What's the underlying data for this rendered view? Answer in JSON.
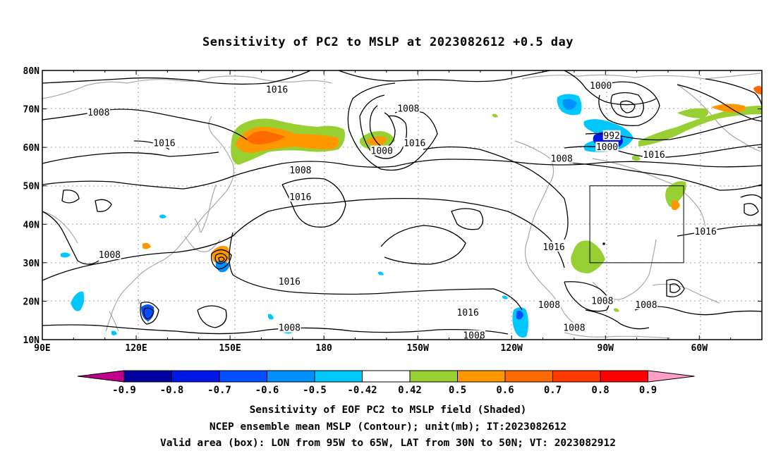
{
  "title": "Sensitivity of PC2 to MSLP at 2023082612 +0.5 day",
  "map": {
    "lat_labels": [
      "80N",
      "70N",
      "60N",
      "50N",
      "40N",
      "30N",
      "20N",
      "10N"
    ],
    "lon_labels": [
      "90E",
      "120E",
      "150E",
      "180",
      "150W",
      "120W",
      "90W",
      "60W"
    ],
    "contour_labels": [
      {
        "text": "1016",
        "lon": 165,
        "lat": 75
      },
      {
        "text": "1008",
        "lon": 108,
        "lat": 69
      },
      {
        "text": "1016",
        "lon": 129,
        "lat": 61
      },
      {
        "text": "1008",
        "lon": 172.5,
        "lat": 54
      },
      {
        "text": "1016",
        "lon": 172.5,
        "lat": 47
      },
      {
        "text": "1008",
        "lon": 207,
        "lat": 70
      },
      {
        "text": "1016",
        "lon": 209,
        "lat": 61
      },
      {
        "text": "1000",
        "lon": 198.5,
        "lat": 59
      },
      {
        "text": "1016",
        "lon": 169,
        "lat": 25
      },
      {
        "text": "1016",
        "lon": 226,
        "lat": 17
      },
      {
        "text": "1008",
        "lon": 111.5,
        "lat": 32
      },
      {
        "text": "1008",
        "lon": 169,
        "lat": 13
      },
      {
        "text": "1008",
        "lon": 228,
        "lat": 11
      },
      {
        "text": "1000",
        "lon": 268.5,
        "lat": 76
      },
      {
        "text": "992",
        "lon": 272,
        "lat": 63
      },
      {
        "text": "1000",
        "lon": 270.5,
        "lat": 60
      },
      {
        "text": "1008",
        "lon": 256,
        "lat": 57
      },
      {
        "text": "1016",
        "lon": 285.5,
        "lat": 58
      },
      {
        "text": "1016",
        "lon": 253.5,
        "lat": 34
      },
      {
        "text": "1016",
        "lon": 302,
        "lat": 38
      },
      {
        "text": "1008",
        "lon": 252,
        "lat": 19
      },
      {
        "text": "1008",
        "lon": 269,
        "lat": 20
      },
      {
        "text": "1008",
        "lon": 283,
        "lat": 19
      },
      {
        "text": "1008",
        "lon": 260,
        "lat": 13
      }
    ],
    "valid_box": {
      "lon_min": 265,
      "lon_max": 295,
      "lat_min": 30,
      "lat_max": 50
    }
  },
  "colorbar": {
    "labels": [
      "-0.9",
      "-0.8",
      "-0.7",
      "-0.6",
      "-0.5",
      "-0.42",
      "0.42",
      "0.5",
      "0.6",
      "0.7",
      "0.8",
      "0.9"
    ],
    "colors": [
      "#0000a0",
      "#0018e6",
      "#0050ff",
      "#0090ff",
      "#00c8ff",
      "#ffffff",
      "#98d034",
      "#ff9800",
      "#ff6a00",
      "#ff3a00",
      "#ff0000"
    ],
    "low_color": "#c0008a",
    "high_color": "#ff9ec6"
  },
  "captions": {
    "line1": "Sensitivity of EOF PC2 to MSLP field (Shaded)",
    "line2": "NCEP ensemble mean MSLP (Contour); unit(mb); IT:2023082612",
    "line3": "Valid area (box): LON from 95W to 65W, LAT from 30N to 50N; VT: 2023082912"
  }
}
